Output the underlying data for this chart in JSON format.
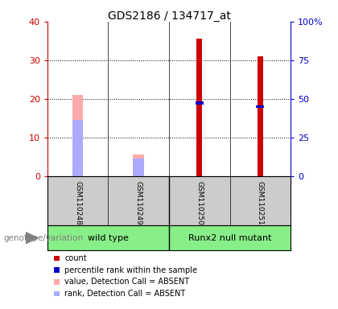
{
  "title": "GDS2186 / 134717_at",
  "samples": [
    "GSM110248",
    "GSM110249",
    "GSM110250",
    "GSM110251"
  ],
  "group_labels": [
    "wild type",
    "Runx2 null mutant"
  ],
  "count_values": [
    0,
    0,
    35.5,
    31.0
  ],
  "percentile_values": [
    0,
    0,
    19.0,
    18.0
  ],
  "absent_value_values": [
    21.0,
    5.5,
    0,
    0
  ],
  "absent_rank_values": [
    14.5,
    4.5,
    0,
    0
  ],
  "ylim_left": [
    0,
    40
  ],
  "ylim_right": [
    0,
    100
  ],
  "yticks_left": [
    0,
    10,
    20,
    30,
    40
  ],
  "yticks_right": [
    0,
    25,
    50,
    75,
    100
  ],
  "ytick_labels_left": [
    "0",
    "10",
    "20",
    "30",
    "40"
  ],
  "ytick_labels_right": [
    "0",
    "25",
    "50",
    "75",
    "100%"
  ],
  "color_count": "#cc0000",
  "color_percentile": "#0000cc",
  "color_absent_value": "#ffaaaa",
  "color_absent_rank": "#aaaaff",
  "color_group_bg": "#88ee88",
  "color_sample_bg": "#cccccc",
  "legend_items": [
    {
      "color": "#cc0000",
      "label": "count"
    },
    {
      "color": "#0000cc",
      "label": "percentile rank within the sample"
    },
    {
      "color": "#ffaaaa",
      "label": "value, Detection Call = ABSENT"
    },
    {
      "color": "#aaaaff",
      "label": "rank, Detection Call = ABSENT"
    }
  ],
  "genotype_label": "genotype/variation"
}
